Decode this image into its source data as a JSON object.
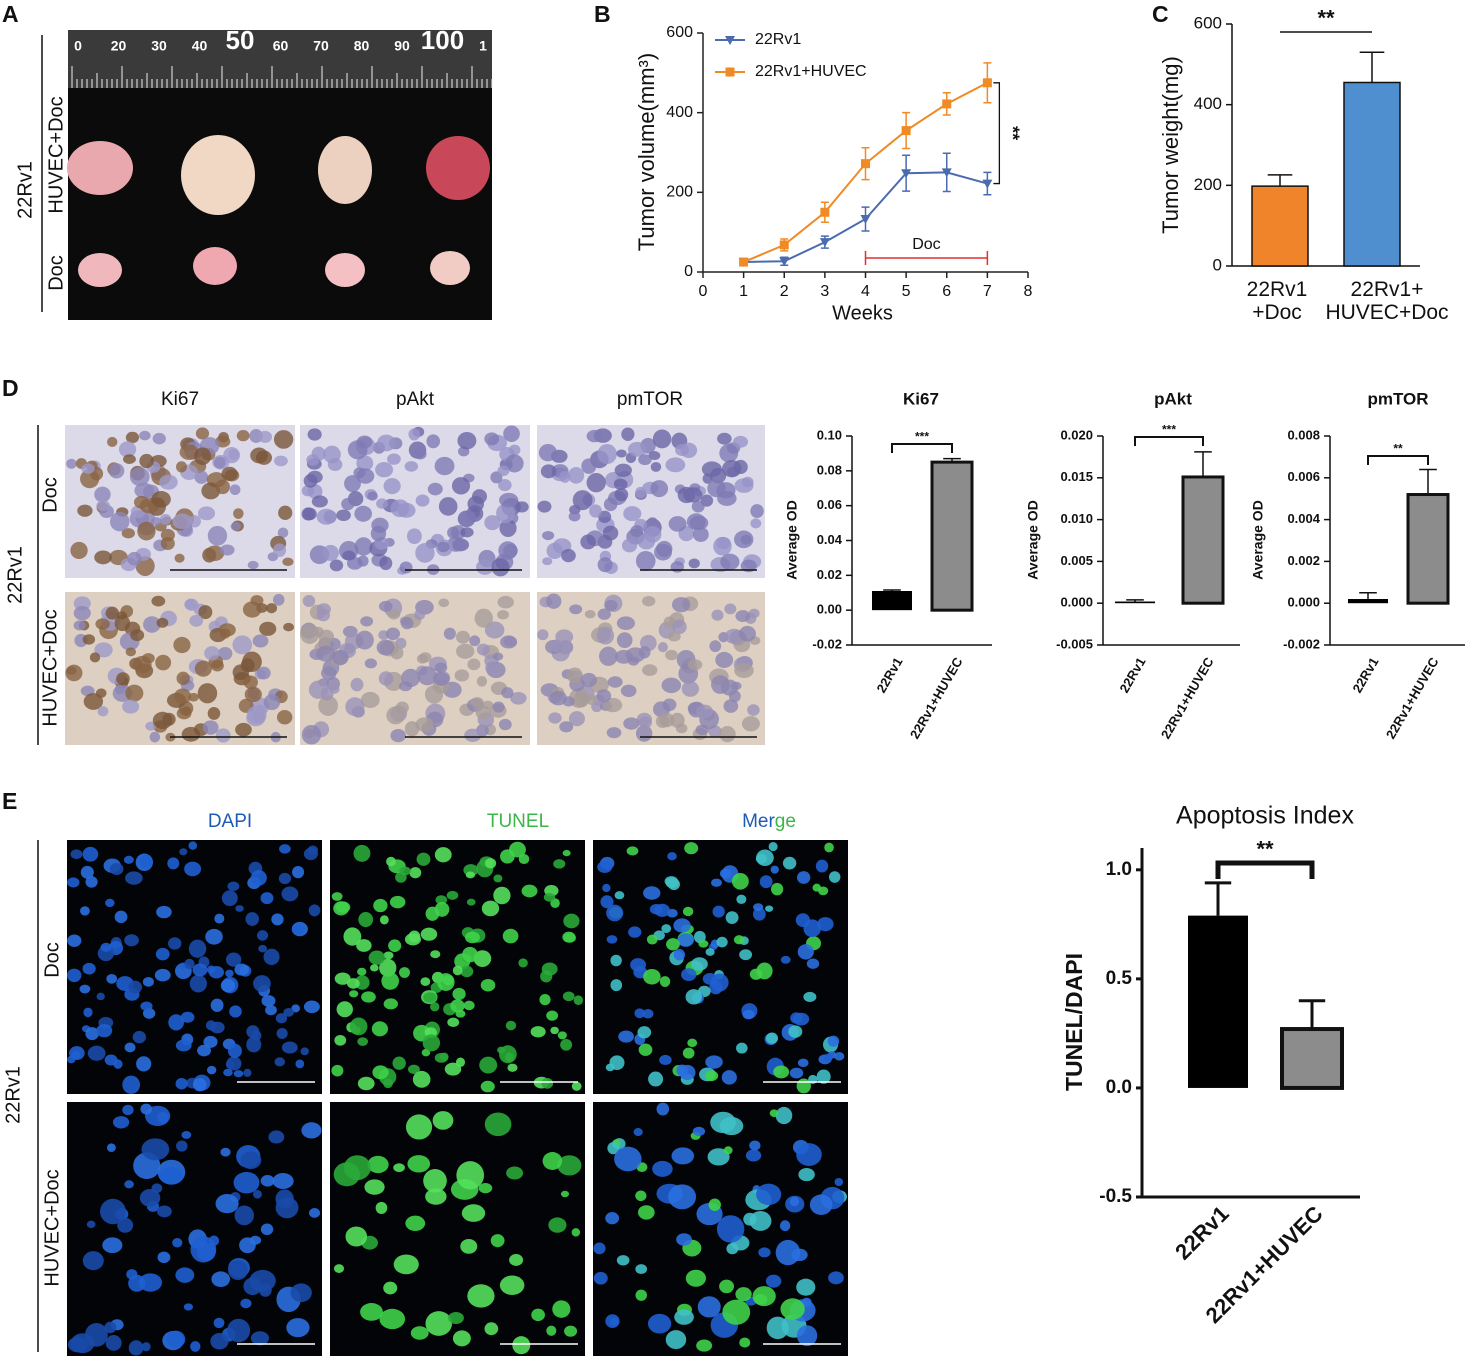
{
  "figure": {
    "panel_letters": [
      "A",
      "B",
      "C",
      "D",
      "E"
    ],
    "panel_a": {
      "group": "22Rv1",
      "rows": [
        "HUVEC+Doc",
        "Doc"
      ],
      "ruler": [
        "0",
        "20",
        "30",
        "40",
        "50",
        "60",
        "70",
        "80",
        "90",
        "100",
        "1"
      ]
    },
    "panel_d": {
      "group": "22Rv1",
      "columns": [
        "Ki67",
        "pAkt",
        "pmTOR"
      ],
      "rows": [
        "Doc",
        "HUVEC+Doc"
      ]
    },
    "panel_e": {
      "group": "22Rv1",
      "columns": [
        "DAPI",
        "TUNEL"
      ],
      "merge": [
        "Mer",
        "ge"
      ],
      "rows": [
        "Doc",
        "HUVEC+Doc"
      ]
    }
  },
  "chart_data": [
    {
      "type": "line",
      "ylabel": "Tumor volume(mm³)",
      "xlabel": "Weeks",
      "x": [
        1,
        2,
        3,
        4,
        5,
        6,
        7
      ],
      "xlim": [
        0,
        8
      ],
      "xticks": [
        0,
        1,
        2,
        3,
        4,
        5,
        6,
        7,
        8
      ],
      "ylim": [
        0,
        600
      ],
      "yticks": [
        0,
        200,
        400,
        600
      ],
      "legend": "upper left",
      "treatment_label": "Doc",
      "significance": "**",
      "series": [
        {
          "name": "22Rv1",
          "color": "#4a6bb0",
          "marker": "triangle-down",
          "values": [
            25,
            27,
            75,
            133,
            248,
            250,
            222
          ],
          "errors": [
            5,
            10,
            15,
            30,
            45,
            48,
            28
          ]
        },
        {
          "name": "22Rv1+HUVEC",
          "color": "#f08a24",
          "marker": "square",
          "values": [
            25,
            68,
            150,
            272,
            355,
            422,
            475
          ],
          "errors": [
            5,
            15,
            25,
            40,
            45,
            28,
            50
          ]
        }
      ]
    },
    {
      "type": "bar",
      "ylabel": "Tumor weight(mg)",
      "categories": [
        "22Rv1\n+Doc",
        "22Rv1+\nHUVEC+Doc"
      ],
      "values": [
        198,
        455
      ],
      "errors": [
        28,
        75
      ],
      "colors": [
        "#f0842a",
        "#4f8fd0"
      ],
      "ylim": [
        0,
        600
      ],
      "yticks": [
        0,
        200,
        400,
        600
      ],
      "significance": "**"
    },
    {
      "type": "bar",
      "title": "Ki67",
      "ylabel": "Average OD",
      "categories": [
        "22Rv1",
        "22Rv1+HUVEC"
      ],
      "values": [
        0.011,
        0.085
      ],
      "errors": [
        0.0006,
        0.002
      ],
      "colors": [
        "#000000",
        "#8c8c8c"
      ],
      "ylim": [
        -0.02,
        0.1
      ],
      "yticks": [
        -0.02,
        {
          "value": 0,
          "label": "0.00"
        },
        0.02,
        0.04,
        0.06,
        0.08,
        {
          "value": 0.1,
          "label": "0.10"
        }
      ],
      "significance": "***"
    },
    {
      "type": "bar",
      "title": "pAkt",
      "ylabel": "Average OD",
      "categories": [
        "22Rv1",
        "22Rv1+HUVEC"
      ],
      "values": [
        0.0002,
        0.0151
      ],
      "errors": [
        0.0002,
        0.003
      ],
      "colors": [
        "#000000",
        "#8c8c8c"
      ],
      "ylim": [
        -0.005,
        0.02
      ],
      "yticks": [
        -0.005,
        {
          "value": 0,
          "label": "0.000"
        },
        0.005,
        {
          "value": 0.01,
          "label": "0.010"
        },
        0.015,
        {
          "value": 0.02,
          "label": "0.020"
        }
      ],
      "significance": "***"
    },
    {
      "type": "bar",
      "title": "pmTOR",
      "ylabel": "Average OD",
      "categories": [
        "22Rv1",
        "22Rv1+HUVEC"
      ],
      "values": [
        0.0002,
        0.0052
      ],
      "errors": [
        0.0003,
        0.0012
      ],
      "colors": [
        "#000000",
        "#8c8c8c"
      ],
      "ylim": [
        -0.002,
        0.008
      ],
      "yticks": [
        -0.002,
        {
          "value": 0,
          "label": "0.000"
        },
        0.002,
        0.004,
        0.006,
        0.008
      ],
      "significance": "**"
    },
    {
      "type": "bar",
      "title": "Apoptosis Index",
      "ylabel": "TUNEL/DAPI",
      "categories": [
        "22Rv1",
        "22Rv1+HUVEC"
      ],
      "values": [
        0.79,
        0.27
      ],
      "errors": [
        0.15,
        0.13
      ],
      "colors": [
        "#000000",
        "#8c8c8c"
      ],
      "ylim": [
        -0.5,
        1.1
      ],
      "yticks": [
        -0.5,
        {
          "value": 0,
          "label": "0.0"
        },
        0.5,
        {
          "value": 1,
          "label": "1.0"
        }
      ],
      "significance": "**"
    }
  ]
}
